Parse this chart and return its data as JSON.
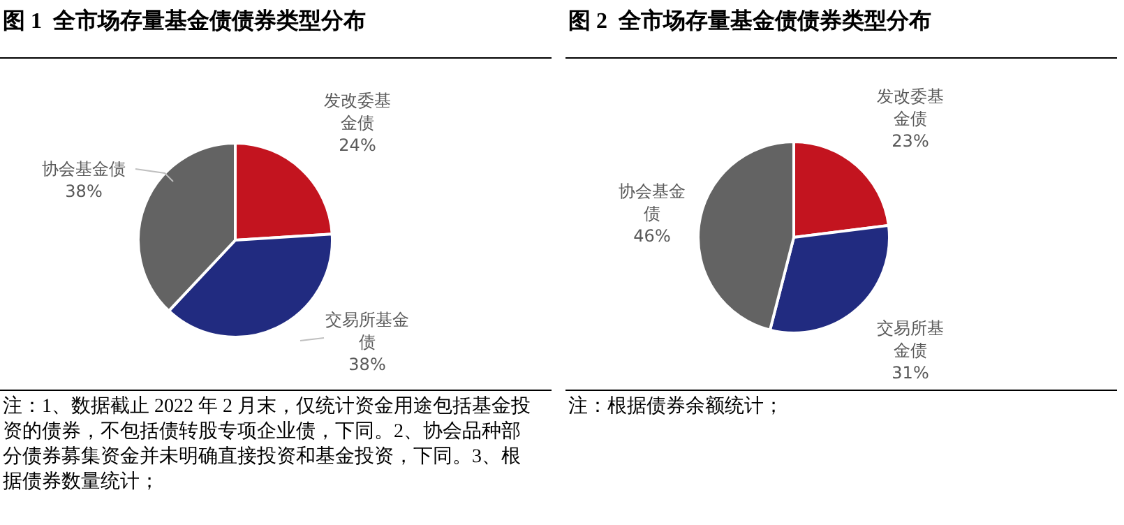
{
  "chart_data": [
    {
      "type": "pie",
      "title": "图 1  全市场存量基金债债券类型分布",
      "categories": [
        "发改委基金债",
        "交易所基金债",
        "协会基金债"
      ],
      "values": [
        24,
        38,
        38
      ],
      "value_labels": [
        "24%",
        "38%",
        "38%"
      ],
      "colors": [
        "#c3141f",
        "#212b80",
        "#636363"
      ],
      "legend": false,
      "annotations": [
        "注：1、数据截止 2022 年 2 月末，仅统计资金用途包括基金投资的债券，不包括债转股专项企业债，下同。2、协会品种部分债券募集资金并未明确直接投资和基金投资，下同。3、根据债券数量统计；"
      ]
    },
    {
      "type": "pie",
      "title": "图 2  全市场存量基金债债券类型分布",
      "categories": [
        "发改委基金债",
        "交易所基金债",
        "协会基金债"
      ],
      "values": [
        23,
        31,
        46
      ],
      "value_labels": [
        "23%",
        "31%",
        "46%"
      ],
      "colors": [
        "#c3141f",
        "#212b80",
        "#636363"
      ],
      "legend": false,
      "annotations": [
        "注：根据债券余额统计；"
      ]
    }
  ]
}
